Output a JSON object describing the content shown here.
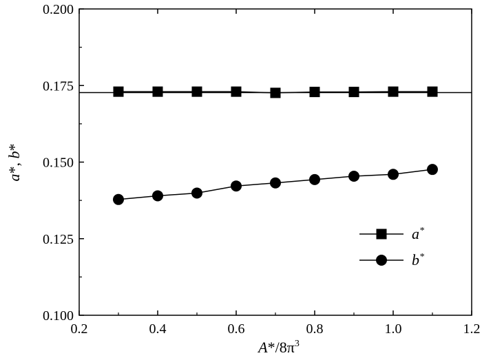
{
  "chart_data": {
    "type": "line",
    "xlabel": "A*/8π³",
    "ylabel": "a*, b*",
    "xlim": [
      0.2,
      1.2
    ],
    "ylim": [
      0.1,
      0.2
    ],
    "xticks": [
      "0.2",
      "0.4",
      "0.6",
      "0.8",
      "1.0",
      "1.2"
    ],
    "yticks": [
      "0.100",
      "0.125",
      "0.150",
      "0.175",
      "0.200"
    ],
    "x": [
      0.3,
      0.4,
      0.5,
      0.6,
      0.7,
      0.8,
      0.9,
      1.0,
      1.1
    ],
    "series": [
      {
        "name": "a*",
        "marker": "square",
        "values": [
          0.173,
          0.173,
          0.173,
          0.173,
          0.1726,
          0.1729,
          0.1729,
          0.173,
          0.173
        ]
      },
      {
        "name": "b*",
        "marker": "circle",
        "values": [
          0.1378,
          0.139,
          0.1399,
          0.1422,
          0.1432,
          0.1443,
          0.1454,
          0.146,
          0.1476
        ]
      }
    ],
    "reference_line": {
      "y": 0.1727
    },
    "legend": {
      "position": "bottom-right"
    },
    "grid": false
  }
}
